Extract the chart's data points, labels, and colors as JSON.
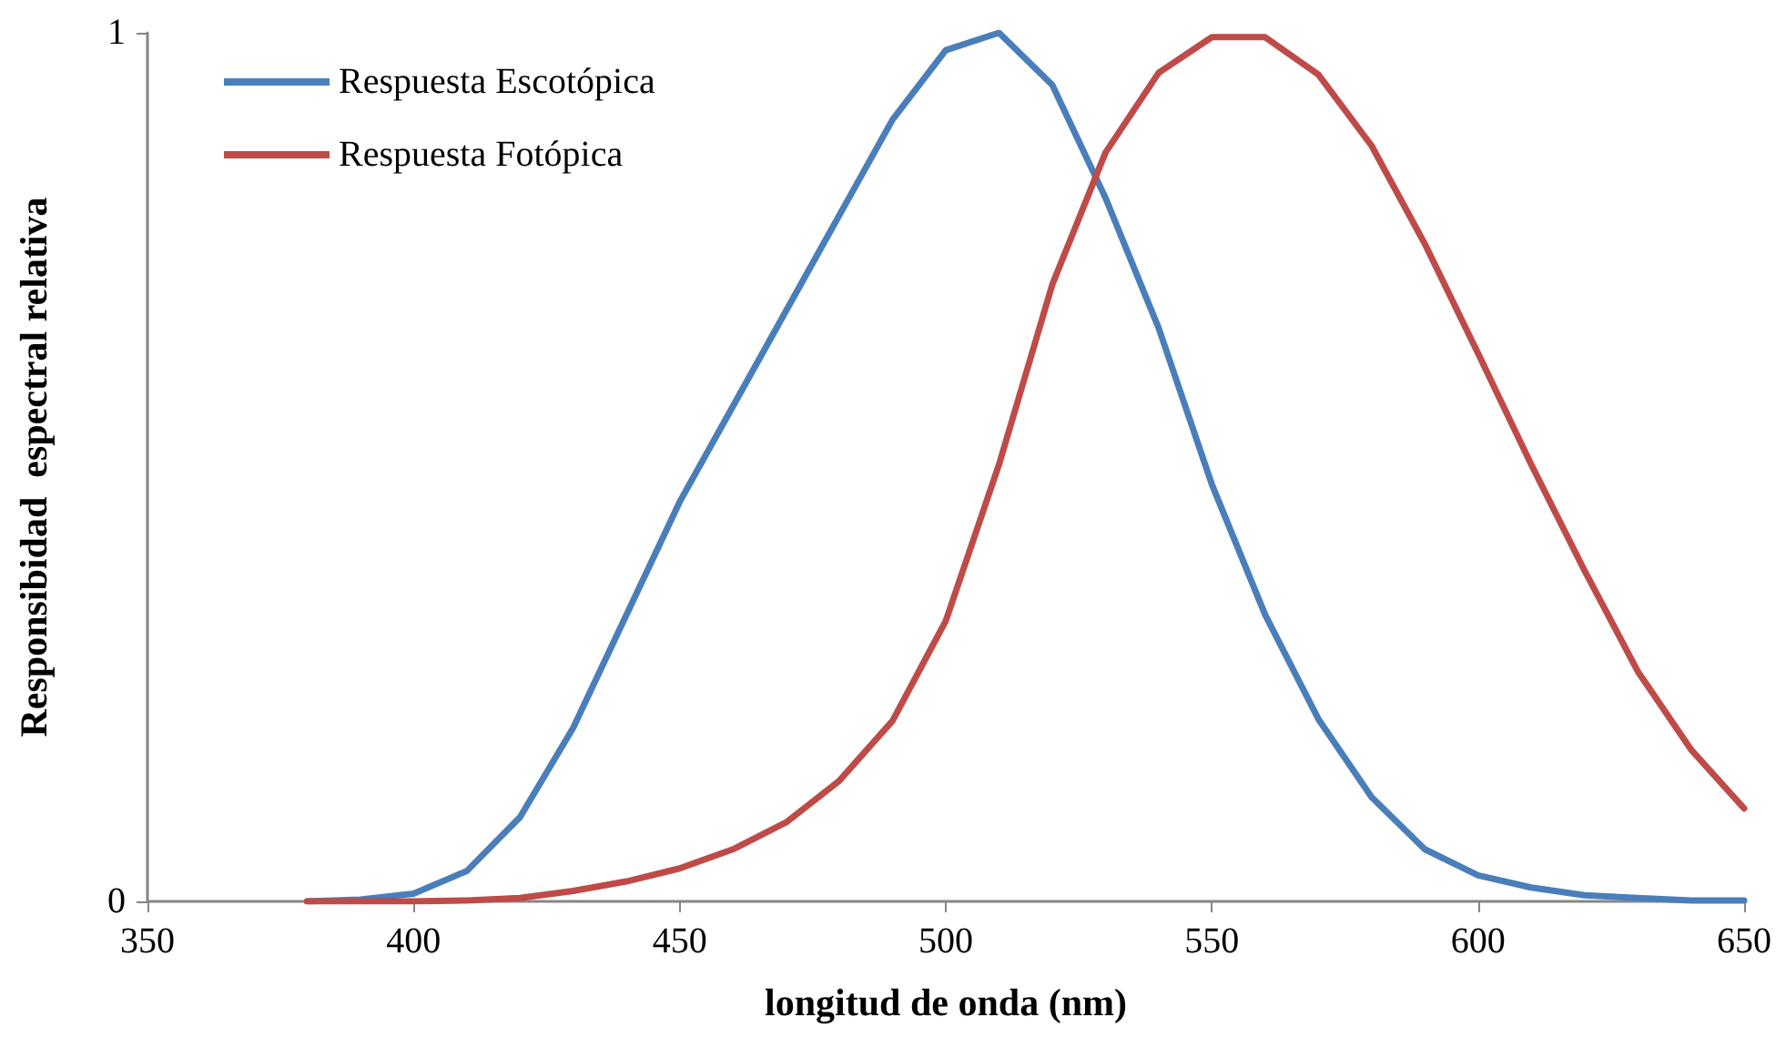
{
  "chart_data": {
    "type": "line",
    "xlabel": "longitud de onda (nm)",
    "ylabel": "Responsibidad  espectral relativa",
    "x": [
      380,
      390,
      400,
      410,
      420,
      430,
      440,
      450,
      460,
      470,
      480,
      490,
      500,
      510,
      520,
      530,
      540,
      550,
      560,
      570,
      580,
      590,
      600,
      610,
      620,
      630,
      640,
      650
    ],
    "series": [
      {
        "name": "Respuesta Escotópica",
        "color": "#4a7ebb",
        "values": [
          0,
          0.002,
          0.009,
          0.035,
          0.097,
          0.2,
          0.33,
          0.46,
          0.57,
          0.68,
          0.79,
          0.9,
          0.98,
          1.0,
          0.94,
          0.81,
          0.66,
          0.48,
          0.33,
          0.21,
          0.12,
          0.06,
          0.03,
          0.016,
          0.007,
          0.004,
          0.001,
          0.001
        ]
      },
      {
        "name": "Respuesta Fotópica",
        "color": "#be4b48",
        "values": [
          0,
          0,
          0,
          0.001,
          0.004,
          0.012,
          0.023,
          0.038,
          0.06,
          0.091,
          0.139,
          0.208,
          0.323,
          0.503,
          0.71,
          0.862,
          0.954,
          0.995,
          0.995,
          0.952,
          0.87,
          0.757,
          0.631,
          0.503,
          0.381,
          0.265,
          0.175,
          0.107
        ]
      }
    ],
    "xlim": [
      350,
      650
    ],
    "xticks": [
      350,
      400,
      450,
      500,
      550,
      600,
      650
    ],
    "ylim": [
      0,
      1
    ],
    "yticks": [
      0,
      1
    ],
    "grid": false,
    "legend": "top left",
    "marker": "none",
    "line_style": "solid"
  }
}
